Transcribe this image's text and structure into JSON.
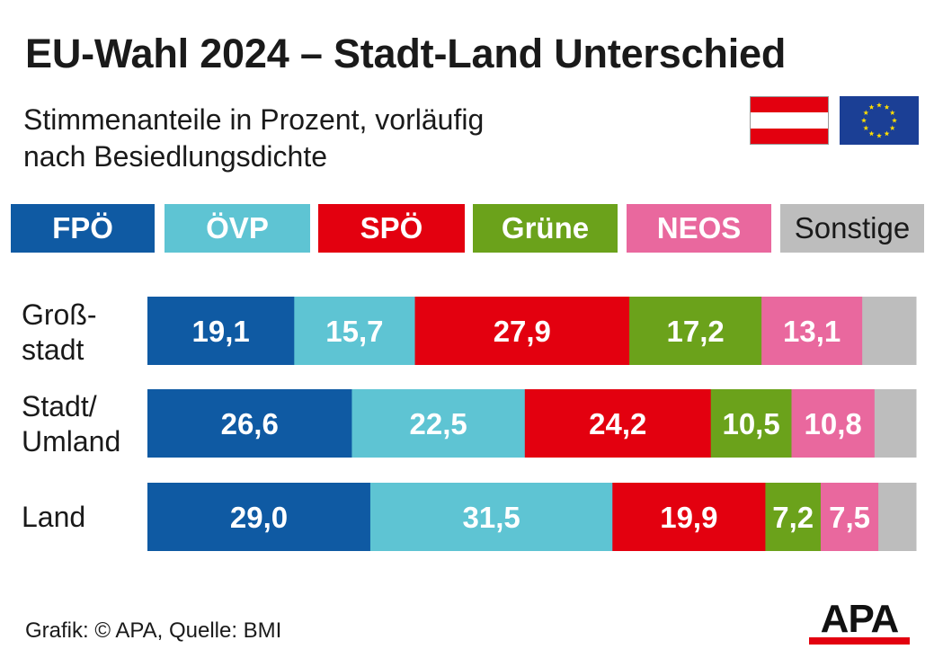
{
  "header": {
    "title": "EU-Wahl 2024 – Stadt-Land Unterschied",
    "subtitle": "Stimmenanteile in Prozent, vorläufig\nnach Besiedlungsdichte"
  },
  "flags": {
    "austria": "austria-flag",
    "eu": "eu-flag"
  },
  "legend": [
    {
      "label": "FPÖ",
      "color": "#0f5aa3"
    },
    {
      "label": "ÖVP",
      "color": "#5ec4d3"
    },
    {
      "label": "SPÖ",
      "color": "#e3000f"
    },
    {
      "label": "Grüne",
      "color": "#6ba21b"
    },
    {
      "label": "NEOS",
      "color": "#e9689e"
    },
    {
      "label": "Sonstige",
      "color": "#bdbdbd"
    }
  ],
  "chart_data": {
    "type": "bar",
    "orientation": "horizontal-stacked",
    "title": "EU-Wahl 2024 – Stadt-Land Unterschied",
    "subtitle": "Stimmenanteile in Prozent, vorläufig nach Besiedlungsdichte",
    "categories": [
      "Groß-\nstadt",
      "Stadt/\nUmland",
      "Land"
    ],
    "series": [
      {
        "name": "FPÖ",
        "color": "#0f5aa3",
        "values": [
          19.1,
          26.6,
          29.0
        ],
        "labels": [
          "19,1",
          "26,6",
          "29,0"
        ]
      },
      {
        "name": "ÖVP",
        "color": "#5ec4d3",
        "values": [
          15.7,
          22.5,
          31.5
        ],
        "labels": [
          "15,7",
          "22,5",
          "31,5"
        ]
      },
      {
        "name": "SPÖ",
        "color": "#e3000f",
        "values": [
          27.9,
          24.2,
          19.9
        ],
        "labels": [
          "27,9",
          "24,2",
          "19,9"
        ]
      },
      {
        "name": "Grüne",
        "color": "#6ba21b",
        "values": [
          17.2,
          10.5,
          7.2
        ],
        "labels": [
          "17,2",
          "10,5",
          "7,2"
        ]
      },
      {
        "name": "NEOS",
        "color": "#e9689e",
        "values": [
          13.1,
          10.8,
          7.5
        ],
        "labels": [
          "13,1",
          "10,8",
          "7,5"
        ]
      },
      {
        "name": "Sonstige",
        "color": "#bdbdbd",
        "values": [
          7.0,
          5.4,
          4.9
        ],
        "labels": [
          "",
          "",
          ""
        ]
      }
    ],
    "xlim": [
      0,
      100
    ],
    "grid": false,
    "legend": "top"
  },
  "footer": {
    "source": "Grafik: © APA, Quelle: BMI",
    "logo_text": "APA",
    "logo_colors": {
      "letters": "#111111",
      "stripe": "#e3000f"
    }
  }
}
